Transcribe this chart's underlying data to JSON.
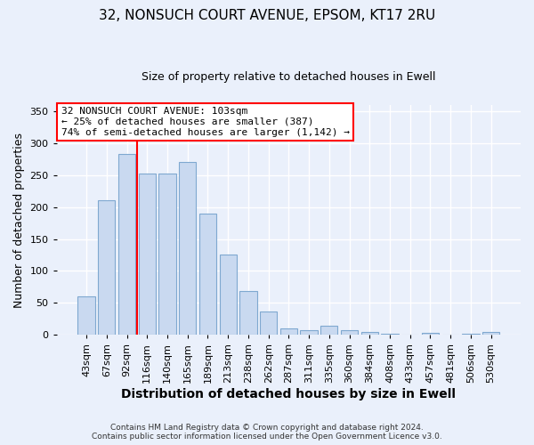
{
  "title1": "32, NONSUCH COURT AVENUE, EPSOM, KT17 2RU",
  "title2": "Size of property relative to detached houses in Ewell",
  "xlabel": "Distribution of detached houses by size in Ewell",
  "ylabel": "Number of detached properties",
  "bar_labels": [
    "43sqm",
    "67sqm",
    "92sqm",
    "116sqm",
    "140sqm",
    "165sqm",
    "189sqm",
    "213sqm",
    "238sqm",
    "262sqm",
    "287sqm",
    "311sqm",
    "335sqm",
    "360sqm",
    "384sqm",
    "408sqm",
    "433sqm",
    "457sqm",
    "481sqm",
    "506sqm",
    "530sqm"
  ],
  "bar_values": [
    60,
    210,
    283,
    252,
    252,
    271,
    190,
    126,
    69,
    36,
    10,
    8,
    14,
    7,
    5,
    2,
    0,
    3,
    0,
    2,
    4
  ],
  "bar_color": "#c9d9f0",
  "bar_edge_color": "#7fa8d0",
  "vline_color": "red",
  "vline_x_idx": 2,
  "ylim": [
    0,
    360
  ],
  "yticks": [
    0,
    50,
    100,
    150,
    200,
    250,
    300,
    350
  ],
  "annotation_title": "32 NONSUCH COURT AVENUE: 103sqm",
  "annotation_line1": "← 25% of detached houses are smaller (387)",
  "annotation_line2": "74% of semi-detached houses are larger (1,142) →",
  "annotation_box_color": "#ffffff",
  "annotation_box_edge": "red",
  "footer1": "Contains HM Land Registry data © Crown copyright and database right 2024.",
  "footer2": "Contains public sector information licensed under the Open Government Licence v3.0.",
  "bg_color": "#eaf0fb",
  "grid_color": "#ffffff",
  "title1_fontsize": 11,
  "title2_fontsize": 9,
  "xlabel_fontsize": 10,
  "ylabel_fontsize": 9,
  "tick_fontsize": 8,
  "ann_fontsize": 8,
  "footer_fontsize": 6.5
}
